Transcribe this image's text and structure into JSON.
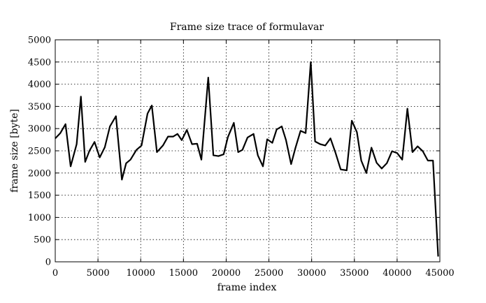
{
  "chart_data": {
    "type": "line",
    "title": "Frame size trace of formulavar",
    "xlabel": "frame index",
    "ylabel": "frame size [byte]",
    "xlim": [
      0,
      45000
    ],
    "ylim": [
      0,
      5000
    ],
    "grid": true,
    "x_ticks": [
      0,
      5000,
      10000,
      15000,
      20000,
      25000,
      30000,
      35000,
      40000,
      45000
    ],
    "y_ticks": [
      0,
      500,
      1000,
      1500,
      2000,
      2500,
      3000,
      3500,
      4000,
      4500,
      5000
    ],
    "series": [
      {
        "x": [
          0,
          600,
          1200,
          1800,
          2500,
          3000,
          3500,
          4000,
          4600,
          5200,
          5800,
          6400,
          7100,
          7800,
          8300,
          8800,
          9500,
          10100,
          10800,
          11300,
          11900,
          12600,
          13200,
          13800,
          14300,
          14800,
          15400,
          16000,
          16600,
          17100,
          17900,
          18500,
          19100,
          19700,
          20200,
          20900,
          21400,
          21900,
          22500,
          23200,
          23700,
          24300,
          24800,
          25400,
          25900,
          26500,
          27000,
          27600,
          28100,
          28700,
          29300,
          29900,
          30400,
          31000,
          31600,
          32200,
          32800,
          33400,
          34100,
          34700,
          35300,
          35800,
          36400,
          37000,
          37600,
          38200,
          38800,
          39400,
          40000,
          40600,
          41200,
          41800,
          42400,
          43000,
          43600,
          44200,
          44800
        ],
        "y": [
          2780,
          2900,
          3100,
          2150,
          2650,
          3720,
          2250,
          2500,
          2700,
          2350,
          2580,
          3050,
          3280,
          1850,
          2220,
          2300,
          2520,
          2620,
          3340,
          3520,
          2470,
          2620,
          2820,
          2820,
          2880,
          2740,
          2970,
          2650,
          2660,
          2300,
          4150,
          2400,
          2380,
          2420,
          2810,
          3130,
          2470,
          2520,
          2800,
          2880,
          2400,
          2150,
          2760,
          2680,
          2980,
          3050,
          2740,
          2200,
          2560,
          2950,
          2900,
          4500,
          2710,
          2650,
          2620,
          2780,
          2450,
          2080,
          2060,
          3180,
          2920,
          2280,
          2000,
          2570,
          2230,
          2100,
          2220,
          2490,
          2450,
          2300,
          3450,
          2470,
          2600,
          2490,
          2280,
          2280,
          120
        ]
      }
    ]
  }
}
